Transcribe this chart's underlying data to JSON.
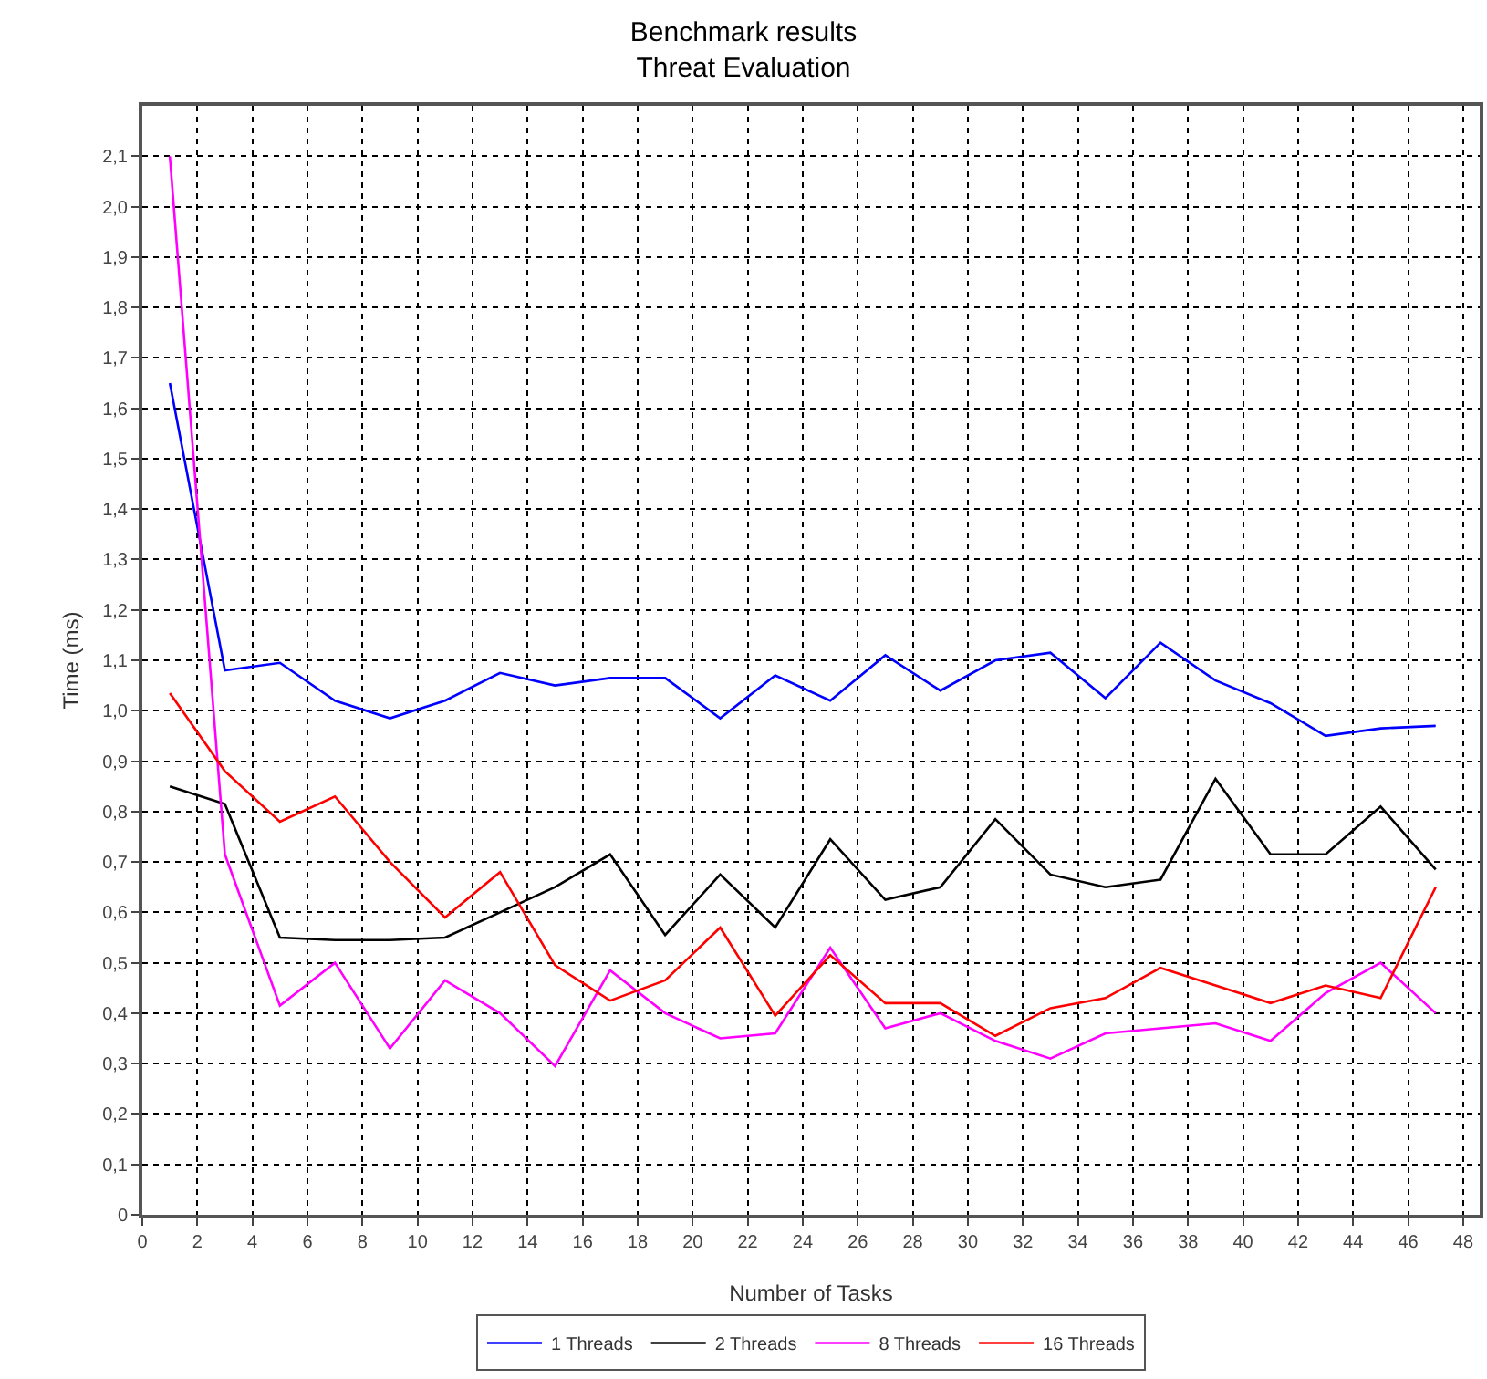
{
  "chart_data": {
    "type": "line",
    "title": "Benchmark results",
    "subtitle": "Threat Evaluation",
    "xlabel": "Number of Tasks",
    "ylabel": "Time (ms)",
    "x": [
      1,
      3,
      5,
      7,
      9,
      11,
      13,
      15,
      17,
      19,
      21,
      23,
      25,
      27,
      29,
      31,
      33,
      35,
      37,
      39,
      41,
      43,
      45,
      47
    ],
    "series": [
      {
        "name": "1 Threads",
        "color": "#0000ff",
        "values": [
          1.65,
          1.08,
          1.095,
          1.02,
          0.985,
          1.02,
          1.075,
          1.05,
          1.065,
          1.065,
          0.985,
          1.07,
          1.02,
          1.11,
          1.04,
          1.1,
          1.115,
          1.025,
          1.135,
          1.06,
          1.015,
          0.95,
          0.965,
          0.97
        ]
      },
      {
        "name": "2 Threads",
        "color": "#000000",
        "values": [
          0.85,
          0.815,
          0.55,
          0.545,
          0.545,
          0.55,
          0.6,
          0.65,
          0.715,
          0.555,
          0.675,
          0.57,
          0.745,
          0.625,
          0.65,
          0.785,
          0.675,
          0.65,
          0.665,
          0.865,
          0.715,
          0.715,
          0.81,
          0.685
        ]
      },
      {
        "name": "8 Threads",
        "color": "#ff00ff",
        "values": [
          2.1,
          0.715,
          0.415,
          0.5,
          0.33,
          0.465,
          0.4,
          0.295,
          0.485,
          0.4,
          0.35,
          0.36,
          0.53,
          0.37,
          0.4,
          0.345,
          0.31,
          0.36,
          0.37,
          0.38,
          0.345,
          0.44,
          0.5,
          0.4
        ]
      },
      {
        "name": "16 Threads",
        "color": "#ff0000",
        "values": [
          1.035,
          0.88,
          0.78,
          0.83,
          0.7,
          0.59,
          0.68,
          0.495,
          0.425,
          0.465,
          0.57,
          0.395,
          0.515,
          0.42,
          0.42,
          0.355,
          0.41,
          0.43,
          0.49,
          0.455,
          0.42,
          0.455,
          0.43,
          0.65
        ]
      }
    ],
    "xlim": [
      0,
      48.6
    ],
    "xticks": [
      0,
      2,
      4,
      6,
      8,
      10,
      12,
      14,
      16,
      18,
      20,
      22,
      24,
      26,
      28,
      30,
      32,
      34,
      36,
      38,
      40,
      42,
      44,
      46,
      48
    ],
    "ylim": [
      0,
      2.2
    ],
    "yticks": [
      0,
      {
        "value": 0.1,
        "label": "0,1"
      },
      {
        "value": 0.2,
        "label": "0,2"
      },
      {
        "value": 0.3,
        "label": "0,3"
      },
      {
        "value": 0.4,
        "label": "0,4"
      },
      {
        "value": 0.5,
        "label": "0,5"
      },
      {
        "value": 0.6,
        "label": "0,6"
      },
      {
        "value": 0.7,
        "label": "0,7"
      },
      {
        "value": 0.8,
        "label": "0,8"
      },
      {
        "value": 0.9,
        "label": "0,9"
      },
      {
        "value": 1,
        "label": "1,0"
      },
      {
        "value": 1.1,
        "label": "1,1"
      },
      {
        "value": 1.2,
        "label": "1,2"
      },
      {
        "value": 1.3,
        "label": "1,3"
      },
      {
        "value": 1.4,
        "label": "1,4"
      },
      {
        "value": 1.5,
        "label": "1,5"
      },
      {
        "value": 1.6,
        "label": "1,6"
      },
      {
        "value": 1.7,
        "label": "1,7"
      },
      {
        "value": 1.8,
        "label": "1,8"
      },
      {
        "value": 1.9,
        "label": "1,9"
      },
      {
        "value": 2,
        "label": "2,0"
      },
      {
        "value": 2.1,
        "label": "2,1"
      }
    ],
    "grid": true,
    "legend": "bottom",
    "marker": "none",
    "line_style": "solid"
  }
}
